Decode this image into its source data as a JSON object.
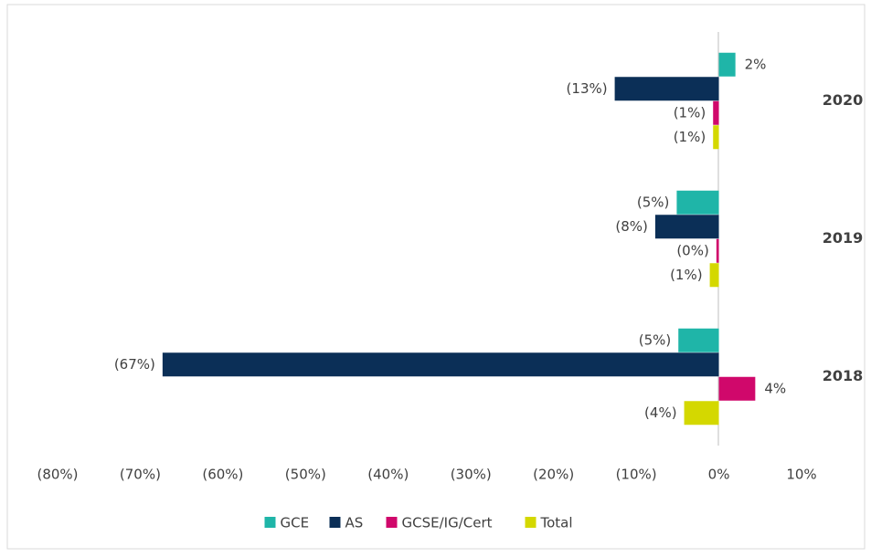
{
  "chart_data": {
    "type": "hbar",
    "categories": [
      "2020",
      "2019",
      "2018"
    ],
    "series": [
      {
        "name": "GCE",
        "color": "#1fb5a8",
        "values": [
          2.0,
          -5.1,
          -4.9
        ],
        "value_labels": [
          "2%",
          "(5%)",
          "(5%)"
        ]
      },
      {
        "name": "AS",
        "color": "#0b2f57",
        "values": [
          -12.6,
          -7.7,
          -67.3
        ],
        "value_labels": [
          "(13%)",
          "(8%)",
          "(67%)"
        ]
      },
      {
        "name": "GCSE/IG/Cert",
        "color": "#d0086b",
        "values": [
          -0.7,
          -0.3,
          4.4
        ],
        "value_labels": [
          "(1%)",
          "(0%)",
          "4%"
        ]
      },
      {
        "name": "Total",
        "color": "#d4d800",
        "values": [
          -0.7,
          -1.1,
          -4.2
        ],
        "value_labels": [
          "(1%)",
          "(1%)",
          "(4%)"
        ]
      }
    ],
    "xlim": [
      -80,
      10
    ],
    "xticks": [
      {
        "value": -80,
        "label": "(80%)"
      },
      {
        "value": -70,
        "label": "(70%)"
      },
      {
        "value": -60,
        "label": "(60%)"
      },
      {
        "value": -50,
        "label": "(50%)"
      },
      {
        "value": -40,
        "label": "(40%)"
      },
      {
        "value": -30,
        "label": "(30%)"
      },
      {
        "value": -20,
        "label": "(20%)"
      },
      {
        "value": -10,
        "label": "(10%)"
      },
      {
        "value": 0,
        "label": "0%"
      },
      {
        "value": 10,
        "label": "10%"
      }
    ],
    "legend": "bottom"
  }
}
